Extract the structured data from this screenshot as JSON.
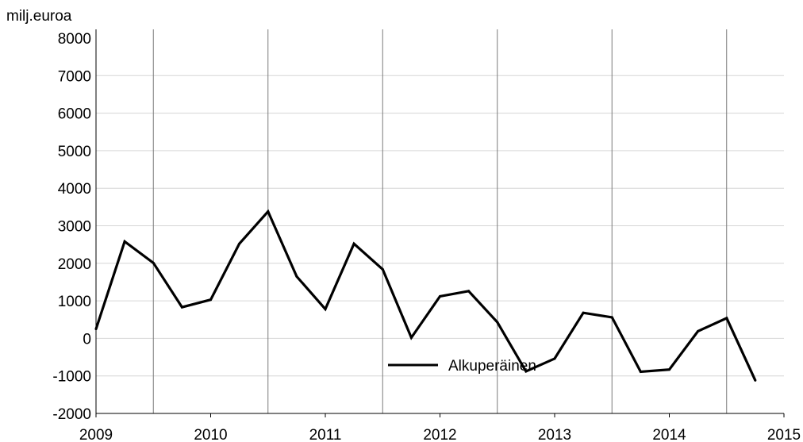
{
  "chart_data": {
    "type": "line",
    "ylabel": "milj.euroa",
    "ylim": [
      -2000,
      8000
    ],
    "yticks": [
      -2000,
      -1000,
      0,
      1000,
      2000,
      3000,
      4000,
      5000,
      6000,
      7000,
      8000
    ],
    "xlim": [
      2009,
      2015
    ],
    "xticks": [
      2009,
      2010,
      2011,
      2012,
      2013,
      2014,
      2015
    ],
    "grid": {
      "horizontal": true,
      "vertical": true
    },
    "legend": {
      "placement": "center-bottom"
    },
    "series": [
      {
        "name": "Alkuperäinen",
        "color": "#000000",
        "x": [
          2009.0,
          2009.25,
          2009.5,
          2009.75,
          2010.0,
          2010.25,
          2010.5,
          2010.75,
          2011.0,
          2011.25,
          2011.5,
          2011.75,
          2012.0,
          2012.25,
          2012.5,
          2012.75,
          2013.0,
          2013.25,
          2013.5,
          2013.75,
          2014.0,
          2014.25,
          2014.5,
          2014.75
        ],
        "values": [
          250,
          2580,
          2010,
          830,
          1030,
          2520,
          3380,
          1650,
          780,
          2520,
          1840,
          20,
          1120,
          1260,
          430,
          -880,
          -540,
          680,
          560,
          -890,
          -830,
          190,
          540,
          -1120
        ]
      }
    ]
  }
}
